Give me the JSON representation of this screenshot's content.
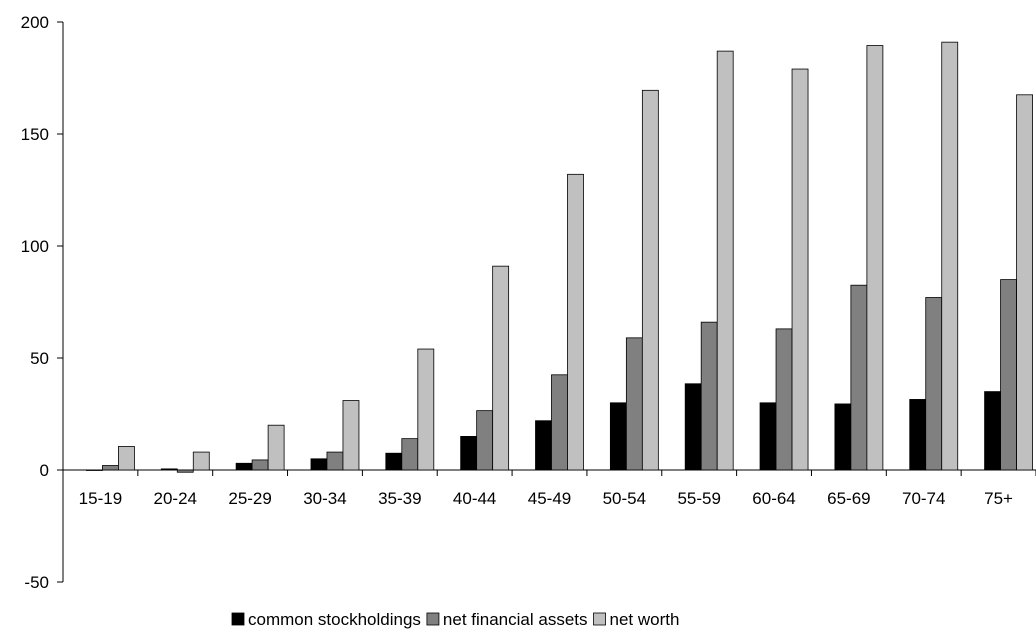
{
  "chart_data": {
    "type": "bar",
    "title": "",
    "xlabel": "",
    "ylabel": "",
    "ylim": [
      -50,
      200
    ],
    "yticks": [
      -50,
      0,
      50,
      100,
      150,
      200
    ],
    "categories": [
      "15-19",
      "20-24",
      "25-29",
      "30-34",
      "35-39",
      "40-44",
      "45-49",
      "50-54",
      "55-59",
      "60-64",
      "65-69",
      "70-74",
      "75+"
    ],
    "series": [
      {
        "name": "common stockholdings",
        "color": "#000000",
        "values": [
          0,
          0.5,
          3,
          5,
          7.5,
          15,
          22,
          30,
          38.5,
          30,
          29.5,
          31.5,
          35
        ]
      },
      {
        "name": "net financial assets",
        "color": "#808080",
        "values": [
          2,
          -1,
          4.5,
          8,
          14,
          26.5,
          42.5,
          59,
          66,
          63,
          82.5,
          77,
          85
        ]
      },
      {
        "name": "net worth",
        "color": "#c0c0c0",
        "values": [
          10.5,
          8,
          20,
          31,
          54,
          91,
          132,
          169.5,
          187,
          179,
          189.5,
          191,
          167.5
        ]
      }
    ],
    "grid": false,
    "legend": "bottom"
  }
}
